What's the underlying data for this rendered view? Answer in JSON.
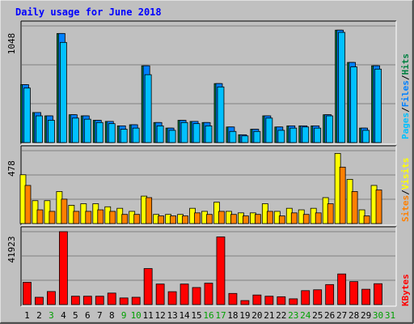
{
  "chart_data": [
    {
      "type": "bar",
      "title": "Daily usage for June 2018",
      "categories": [
        "1",
        "2",
        "3",
        "4",
        "5",
        "6",
        "7",
        "8",
        "9",
        "10",
        "11",
        "12",
        "13",
        "14",
        "15",
        "16",
        "17",
        "18",
        "19",
        "20",
        "21",
        "22",
        "23",
        "24",
        "25",
        "26",
        "27",
        "28",
        "29",
        "30",
        "31"
      ],
      "ymax_label": "1048",
      "ylim": [
        0,
        1048
      ],
      "grid": true,
      "legend_right": [
        "Pages",
        "Files",
        "Hits"
      ],
      "series": [
        {
          "name": "Hits",
          "color": "#008040",
          "values": [
            520,
            270,
            240,
            980,
            250,
            240,
            200,
            190,
            150,
            160,
            690,
            180,
            130,
            200,
            190,
            180,
            530,
            140,
            70,
            120,
            240,
            140,
            150,
            150,
            150,
            250,
            1010,
            720,
            130,
            690,
            0
          ]
        },
        {
          "name": "Files",
          "color": "#0080ff",
          "values": [
            520,
            270,
            240,
            980,
            250,
            240,
            200,
            190,
            150,
            160,
            690,
            180,
            130,
            200,
            190,
            180,
            530,
            140,
            70,
            120,
            240,
            140,
            150,
            150,
            150,
            250,
            1010,
            720,
            130,
            690,
            0
          ]
        },
        {
          "name": "Pages",
          "color": "#00c0ff",
          "values": [
            490,
            240,
            200,
            900,
            220,
            210,
            180,
            170,
            120,
            130,
            610,
            150,
            110,
            180,
            170,
            150,
            500,
            100,
            60,
            100,
            220,
            110,
            130,
            140,
            130,
            240,
            990,
            680,
            110,
            660,
            0
          ]
        }
      ]
    },
    {
      "type": "bar",
      "categories": [
        "1",
        "2",
        "3",
        "4",
        "5",
        "6",
        "7",
        "8",
        "9",
        "10",
        "11",
        "12",
        "13",
        "14",
        "15",
        "16",
        "17",
        "18",
        "19",
        "20",
        "21",
        "22",
        "23",
        "24",
        "25",
        "26",
        "27",
        "28",
        "29",
        "30",
        "31"
      ],
      "ymax_label": "478",
      "ylim": [
        0,
        478
      ],
      "grid": true,
      "legend_right": [
        "Sites",
        "Visits"
      ],
      "series": [
        {
          "name": "Visits",
          "color": "#ffff00",
          "values": [
            320,
            150,
            150,
            210,
            120,
            130,
            130,
            110,
            100,
            80,
            180,
            60,
            60,
            60,
            100,
            80,
            140,
            80,
            70,
            70,
            130,
            80,
            100,
            90,
            100,
            170,
            460,
            290,
            90,
            250,
            0
          ]
        },
        {
          "name": "Sites",
          "color": "#ff8000",
          "values": [
            250,
            90,
            80,
            160,
            80,
            80,
            90,
            80,
            60,
            60,
            170,
            50,
            50,
            50,
            70,
            60,
            80,
            60,
            50,
            60,
            80,
            50,
            70,
            60,
            70,
            130,
            370,
            210,
            50,
            220,
            0
          ]
        }
      ]
    },
    {
      "type": "bar",
      "categories": [
        "1",
        "2",
        "3",
        "4",
        "5",
        "6",
        "7",
        "8",
        "9",
        "10",
        "11",
        "12",
        "13",
        "14",
        "15",
        "16",
        "17",
        "18",
        "19",
        "20",
        "21",
        "22",
        "23",
        "24",
        "25",
        "26",
        "27",
        "28",
        "29",
        "30",
        "31"
      ],
      "ymax_label": "41923",
      "ylim": [
        0,
        41923
      ],
      "grid": true,
      "legend_right": [
        "KBytes"
      ],
      "series": [
        {
          "name": "KBytes",
          "color": "#ff0000",
          "values": [
            12800,
            4200,
            7500,
            41923,
            4800,
            4800,
            4800,
            6600,
            3800,
            4200,
            20700,
            11800,
            7400,
            11800,
            9800,
            12300,
            38900,
            6400,
            2300,
            5500,
            4800,
            4500,
            3300,
            8000,
            8500,
            11500,
            17600,
            13200,
            8800,
            12000,
            0
          ]
        }
      ]
    }
  ],
  "colors": {
    "frame_bg": "#c0c0c0",
    "title": "#0000ff",
    "pages": "#00c0ff",
    "files": "#0080ff",
    "hits": "#008040",
    "sites": "#ff8000",
    "visits": "#ffff00",
    "kbytes": "#ff0000",
    "weekend_label": "#00a000",
    "weekday_label": "#000000"
  },
  "weekend_days": [
    "3",
    "9",
    "10",
    "16",
    "17",
    "23",
    "24",
    "30",
    "31"
  ]
}
